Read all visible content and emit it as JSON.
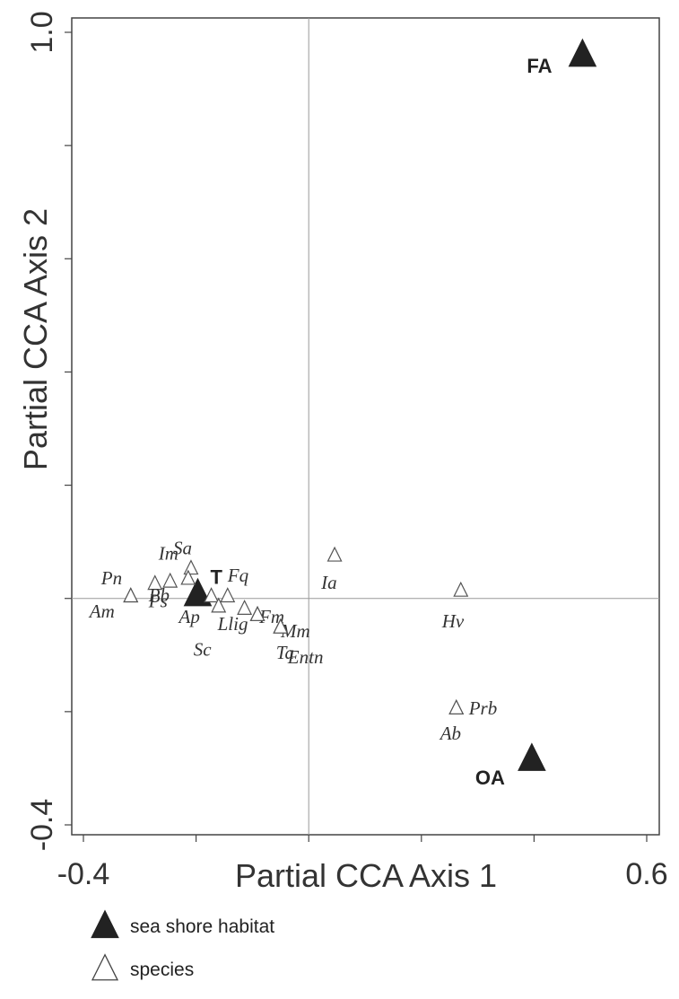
{
  "chart_data": {
    "type": "scatter",
    "xlabel": "Partial CCA Axis 1",
    "ylabel": "Partial CCA Axis 2",
    "xlim": [
      -0.4,
      0.6
    ],
    "ylim": [
      -0.4,
      1.0
    ],
    "x_tick_labels": [
      "-0.4",
      "0.6"
    ],
    "y_tick_labels": [
      "1.0",
      "-0.4"
    ],
    "grid": false,
    "reference_lines": {
      "x": 0,
      "y": 0
    },
    "legend_position": "bottom-left",
    "legend": [
      {
        "label": "sea shore habitat",
        "marker": "filled-triangle"
      },
      {
        "label": "species",
        "marker": "open-triangle"
      }
    ],
    "series": [
      {
        "name": "sea shore habitat",
        "marker": "filled-triangle",
        "points": [
          {
            "label": "FA",
            "x": 0.486,
            "y": 0.96
          },
          {
            "label": "T",
            "x": -0.197,
            "y": 0.007
          },
          {
            "label": "OA",
            "x": 0.396,
            "y": -0.284
          }
        ]
      },
      {
        "name": "species",
        "marker": "open-triangle",
        "points": [
          {
            "label": "Pn",
            "x": -0.316,
            "y": 0.004
          },
          {
            "label": "Im",
            "x": -0.273,
            "y": 0.026
          },
          {
            "label": "Pb",
            "x": -0.246,
            "y": 0.03
          },
          {
            "label": "Am",
            "x": -0.316,
            "y": 0.004
          },
          {
            "label": "Sa",
            "x": -0.209,
            "y": 0.053
          },
          {
            "label": "Ps",
            "x": -0.214,
            "y": 0.035
          },
          {
            "label": "Ap",
            "x": -0.173,
            "y": 0.004
          },
          {
            "label": "Sc",
            "x": -0.16,
            "y": -0.014
          },
          {
            "label": "Fq",
            "x": -0.144,
            "y": 0.004
          },
          {
            "label": "Llig",
            "x": -0.114,
            "y": -0.018
          },
          {
            "label": "Fm",
            "x": -0.091,
            "y": -0.029
          },
          {
            "label": "Mm",
            "x": -0.091,
            "y": -0.029
          },
          {
            "label": "Ta",
            "x": -0.05,
            "y": -0.051
          },
          {
            "label": "Entn",
            "x": -0.05,
            "y": -0.051
          },
          {
            "label": "Ia",
            "x": 0.046,
            "y": 0.076
          },
          {
            "label": "Hv",
            "x": 0.27,
            "y": 0.014
          },
          {
            "label": "Prb",
            "x": 0.262,
            "y": -0.194
          },
          {
            "label": "Ab",
            "x": 0.262,
            "y": -0.194
          }
        ]
      }
    ]
  }
}
